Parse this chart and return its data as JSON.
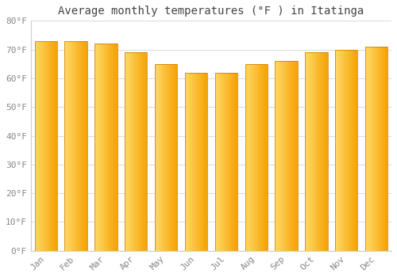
{
  "title": "Average monthly temperatures (°F ) in Itatinga",
  "months": [
    "Jan",
    "Feb",
    "Mar",
    "Apr",
    "May",
    "Jun",
    "Jul",
    "Aug",
    "Sep",
    "Oct",
    "Nov",
    "Dec"
  ],
  "values": [
    73,
    73,
    72,
    69,
    65,
    62,
    62,
    65,
    66,
    69,
    70,
    71
  ],
  "bar_color_left": "#FFD966",
  "bar_color_right": "#F5A000",
  "bar_edge_color": "#C87800",
  "background_color": "#FFFFFF",
  "plot_bg_color": "#FFFFFF",
  "grid_color": "#DDDDDD",
  "ylim": [
    0,
    80
  ],
  "yticks": [
    0,
    10,
    20,
    30,
    40,
    50,
    60,
    70,
    80
  ],
  "tick_label_color": "#888888",
  "title_color": "#444444",
  "title_fontsize": 10,
  "tick_fontsize": 8,
  "bar_width": 0.75
}
